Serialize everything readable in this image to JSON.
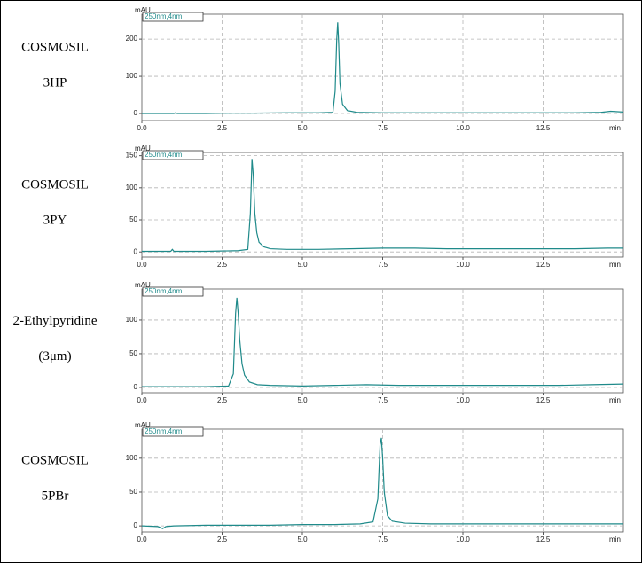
{
  "chart_data": [
    {
      "type": "line",
      "label_lines": [
        "COSMOSIL",
        "3HP"
      ],
      "y_label": "mAU",
      "x_label": "min",
      "grid": true,
      "xlim": [
        0,
        15
      ],
      "ylim": [
        -19,
        267
      ],
      "xticks": [
        {
          "value": 0,
          "label": "0.0"
        },
        2.5,
        {
          "value": 5,
          "label": "5.0"
        },
        7.5,
        {
          "value": 10,
          "label": "10.0"
        },
        12.5
      ],
      "yticks": [
        0,
        100,
        200
      ],
      "x": [
        0,
        0.5,
        1,
        1.05,
        1.1,
        2,
        2.8,
        3.5,
        4.5,
        5.5,
        5.95,
        6.02,
        6.07,
        6.1,
        6.13,
        6.17,
        6.25,
        6.4,
        6.7,
        7.5,
        8.5,
        9.5,
        10.5,
        11.5,
        12.5,
        13.5,
        14.3,
        14.6,
        15
      ],
      "series": [
        {
          "name": "250nm,4nm",
          "color": "#1f8a8a",
          "values": [
            0,
            0,
            0,
            2,
            0,
            0,
            1,
            1,
            2,
            2,
            3,
            60,
            200,
            245,
            190,
            80,
            25,
            8,
            3,
            2,
            2,
            2,
            2,
            2,
            2,
            2,
            3,
            6,
            4
          ]
        }
      ]
    },
    {
      "type": "line",
      "label_lines": [
        "COSMOSIL",
        "3PY"
      ],
      "y_label": "mAU",
      "x_label": "min",
      "grid": true,
      "xlim": [
        0,
        15
      ],
      "ylim": [
        -8,
        155
      ],
      "xticks": [
        {
          "value": 0,
          "label": "0.0"
        },
        2.5,
        {
          "value": 5,
          "label": "5.0"
        },
        7.5,
        {
          "value": 10,
          "label": "10.0"
        },
        12.5
      ],
      "yticks": [
        0,
        50,
        100,
        150
      ],
      "x": [
        0,
        0.5,
        0.9,
        0.95,
        1,
        2,
        3,
        3.3,
        3.38,
        3.43,
        3.47,
        3.52,
        3.58,
        3.65,
        3.8,
        4,
        4.5,
        5.5,
        6.5,
        7.5,
        8.5,
        9.5,
        10.5,
        11.5,
        12.5,
        13.5,
        14.5,
        15
      ],
      "series": [
        {
          "name": "250nm,4nm",
          "color": "#1f8a8a",
          "values": [
            1,
            1,
            1,
            4,
            1,
            1,
            2,
            4,
            60,
            145,
            120,
            60,
            30,
            15,
            8,
            5,
            4,
            4,
            5,
            6,
            6,
            5,
            5,
            5,
            5,
            5,
            6,
            6
          ]
        }
      ]
    },
    {
      "type": "line",
      "label_lines": [
        "2-Ethylpyridine",
        "(3μm)"
      ],
      "y_label": "mAU",
      "x_label": "min",
      "grid": true,
      "xlim": [
        0,
        15
      ],
      "ylim": [
        -8,
        146
      ],
      "xticks": [
        {
          "value": 0,
          "label": "0.0"
        },
        2.5,
        {
          "value": 5,
          "label": "5.0"
        },
        7.5,
        {
          "value": 10,
          "label": "10.0"
        },
        12.5
      ],
      "yticks": [
        0,
        50,
        100
      ],
      "x": [
        0,
        0.5,
        1,
        2,
        2.7,
        2.85,
        2.92,
        2.96,
        3.0,
        3.05,
        3.12,
        3.2,
        3.35,
        3.6,
        4,
        5,
        6,
        7,
        8,
        9,
        10,
        11,
        12,
        13,
        14,
        15
      ],
      "series": [
        {
          "name": "250nm,4nm",
          "color": "#1f8a8a",
          "values": [
            1,
            1,
            1,
            1,
            2,
            20,
            110,
            133,
            110,
            70,
            35,
            18,
            8,
            4,
            3,
            2,
            3,
            4,
            3,
            3,
            3,
            3,
            3,
            3,
            4,
            5
          ]
        }
      ]
    },
    {
      "type": "line",
      "label_lines": [
        "COSMOSIL",
        "5PBr"
      ],
      "y_label": "mAU",
      "x_label": "min",
      "grid": true,
      "xlim": [
        0,
        15
      ],
      "ylim": [
        -9,
        143
      ],
      "xticks": [
        {
          "value": 0,
          "label": "0.0"
        },
        2.5,
        {
          "value": 5,
          "label": "5.0"
        },
        7.5,
        {
          "value": 10,
          "label": "10.0"
        },
        12.5
      ],
      "yticks": [
        0,
        50,
        100
      ],
      "x": [
        0,
        0.5,
        0.65,
        0.75,
        1,
        2,
        3,
        4,
        5,
        6,
        6.8,
        7.2,
        7.35,
        7.42,
        7.46,
        7.5,
        7.55,
        7.65,
        7.8,
        8.2,
        9,
        10,
        11,
        12,
        13,
        14,
        15
      ],
      "series": [
        {
          "name": "250nm,4nm",
          "color": "#1f8a8a",
          "values": [
            0,
            -1,
            -4,
            -1,
            0,
            1,
            1,
            1,
            2,
            2,
            3,
            6,
            40,
            120,
            130,
            100,
            50,
            15,
            7,
            4,
            3,
            3,
            3,
            3,
            3,
            3,
            3
          ]
        }
      ]
    }
  ]
}
